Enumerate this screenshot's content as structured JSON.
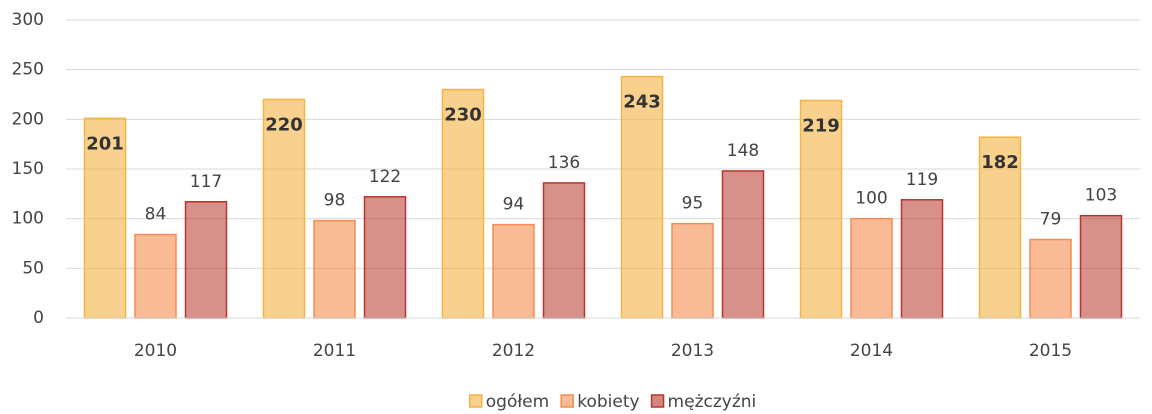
{
  "chart_data": {
    "type": "bar",
    "categories": [
      "2010",
      "2011",
      "2012",
      "2013",
      "2014",
      "2015"
    ],
    "series": [
      {
        "name": "ogółem",
        "color": "#f5b342",
        "values": [
          201,
          220,
          230,
          243,
          219,
          182
        ]
      },
      {
        "name": "kobiety",
        "color": "#f58c50",
        "values": [
          84,
          98,
          94,
          95,
          100,
          79
        ]
      },
      {
        "name": "mężczyźni",
        "color": "#b8352c",
        "values": [
          117,
          122,
          136,
          148,
          119,
          103
        ]
      }
    ],
    "ylim": [
      0,
      300
    ],
    "yticks": [
      0,
      50,
      100,
      150,
      200,
      250,
      300
    ],
    "grid": true,
    "legend": "bottom"
  }
}
